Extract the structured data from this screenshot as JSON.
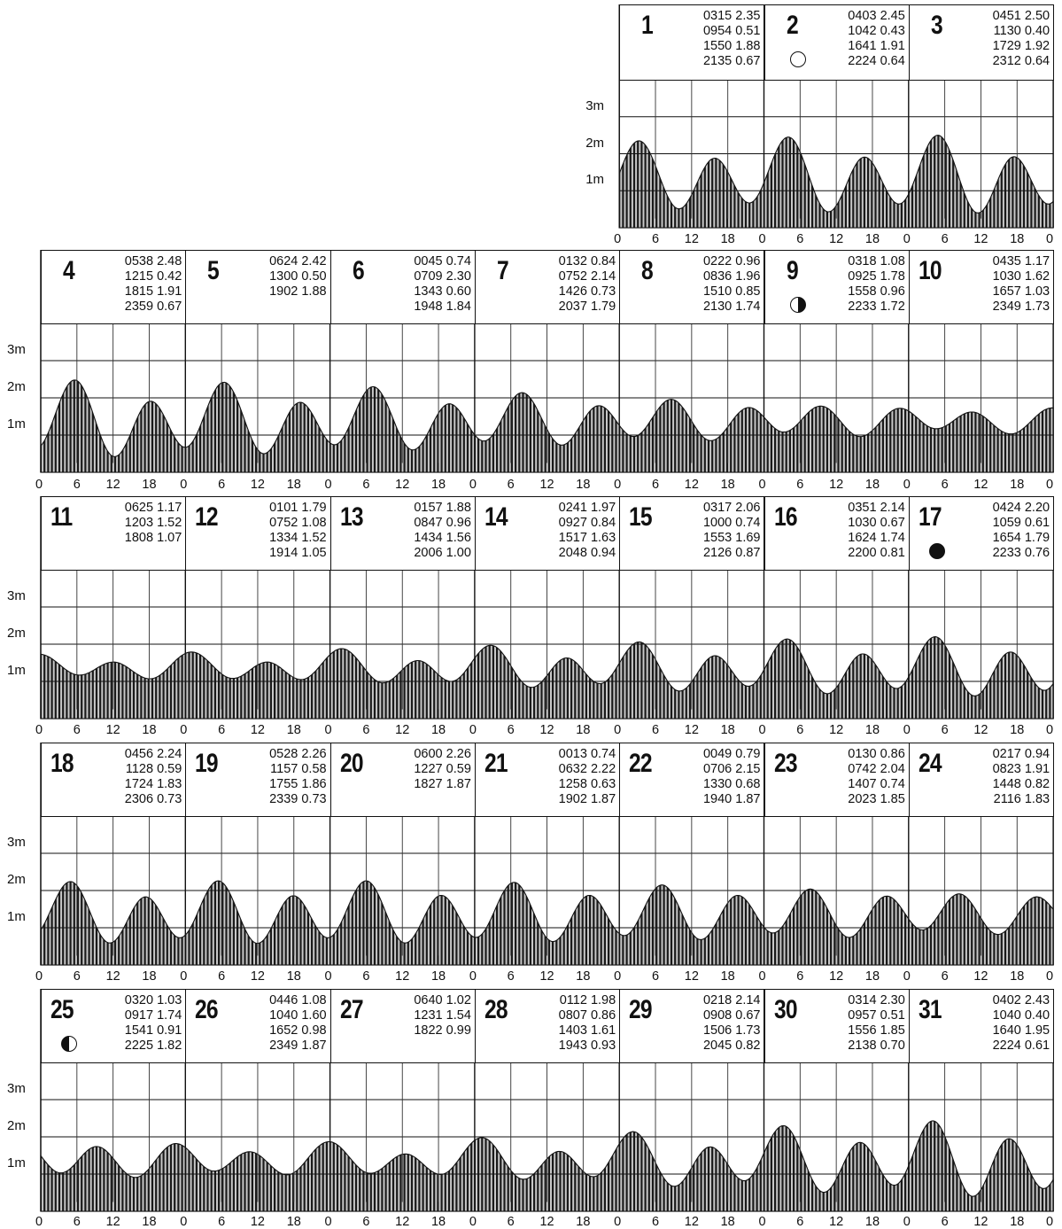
{
  "chart_data": {
    "type": "area",
    "title": "",
    "xlabel": "",
    "ylabel": "",
    "ylim": [
      0,
      4
    ],
    "y_ticks": [
      "1m",
      "2m",
      "3m"
    ],
    "x_ticks": [
      "0",
      "6",
      "12",
      "18",
      "0"
    ],
    "days": [
      {
        "day": "1",
        "moon": "",
        "tides": [
          [
            "0315",
            "2.35"
          ],
          [
            "0954",
            "0.51"
          ],
          [
            "1550",
            "1.88"
          ],
          [
            "2135",
            "0.67"
          ]
        ]
      },
      {
        "day": "2",
        "moon": "full-moon",
        "tides": [
          [
            "0403",
            "2.45"
          ],
          [
            "1042",
            "0.43"
          ],
          [
            "1641",
            "1.91"
          ],
          [
            "2224",
            "0.64"
          ]
        ]
      },
      {
        "day": "3",
        "moon": "",
        "tides": [
          [
            "0451",
            "2.50"
          ],
          [
            "1130",
            "0.40"
          ],
          [
            "1729",
            "1.92"
          ],
          [
            "2312",
            "0.64"
          ]
        ]
      },
      {
        "day": "4",
        "moon": "",
        "tides": [
          [
            "0538",
            "2.48"
          ],
          [
            "1215",
            "0.42"
          ],
          [
            "1815",
            "1.91"
          ],
          [
            "2359",
            "0.67"
          ]
        ]
      },
      {
        "day": "5",
        "moon": "",
        "tides": [
          [
            "0624",
            "2.42"
          ],
          [
            "1300",
            "0.50"
          ],
          [
            "1902",
            "1.88"
          ]
        ]
      },
      {
        "day": "6",
        "moon": "",
        "tides": [
          [
            "0045",
            "0.74"
          ],
          [
            "0709",
            "2.30"
          ],
          [
            "1343",
            "0.60"
          ],
          [
            "1948",
            "1.84"
          ]
        ]
      },
      {
        "day": "7",
        "moon": "",
        "tides": [
          [
            "0132",
            "0.84"
          ],
          [
            "0752",
            "2.14"
          ],
          [
            "1426",
            "0.73"
          ],
          [
            "2037",
            "1.79"
          ]
        ]
      },
      {
        "day": "8",
        "moon": "",
        "tides": [
          [
            "0222",
            "0.96"
          ],
          [
            "0836",
            "1.96"
          ],
          [
            "1510",
            "0.85"
          ],
          [
            "2130",
            "1.74"
          ]
        ]
      },
      {
        "day": "9",
        "moon": "last-quarter",
        "tides": [
          [
            "0318",
            "1.08"
          ],
          [
            "0925",
            "1.78"
          ],
          [
            "1558",
            "0.96"
          ],
          [
            "2233",
            "1.72"
          ]
        ]
      },
      {
        "day": "10",
        "moon": "",
        "tides": [
          [
            "0435",
            "1.17"
          ],
          [
            "1030",
            "1.62"
          ],
          [
            "1657",
            "1.03"
          ],
          [
            "2349",
            "1.73"
          ]
        ]
      },
      {
        "day": "11",
        "moon": "",
        "tides": [
          [
            "0625",
            "1.17"
          ],
          [
            "1203",
            "1.52"
          ],
          [
            "1808",
            "1.07"
          ]
        ]
      },
      {
        "day": "12",
        "moon": "",
        "tides": [
          [
            "0101",
            "1.79"
          ],
          [
            "0752",
            "1.08"
          ],
          [
            "1334",
            "1.52"
          ],
          [
            "1914",
            "1.05"
          ]
        ]
      },
      {
        "day": "13",
        "moon": "",
        "tides": [
          [
            "0157",
            "1.88"
          ],
          [
            "0847",
            "0.96"
          ],
          [
            "1434",
            "1.56"
          ],
          [
            "2006",
            "1.00"
          ]
        ]
      },
      {
        "day": "14",
        "moon": "",
        "tides": [
          [
            "0241",
            "1.97"
          ],
          [
            "0927",
            "0.84"
          ],
          [
            "1517",
            "1.63"
          ],
          [
            "2048",
            "0.94"
          ]
        ]
      },
      {
        "day": "15",
        "moon": "",
        "tides": [
          [
            "0317",
            "2.06"
          ],
          [
            "1000",
            "0.74"
          ],
          [
            "1553",
            "1.69"
          ],
          [
            "2126",
            "0.87"
          ]
        ]
      },
      {
        "day": "16",
        "moon": "",
        "tides": [
          [
            "0351",
            "2.14"
          ],
          [
            "1030",
            "0.67"
          ],
          [
            "1624",
            "1.74"
          ],
          [
            "2200",
            "0.81"
          ]
        ]
      },
      {
        "day": "17",
        "moon": "new-moon",
        "tides": [
          [
            "0424",
            "2.20"
          ],
          [
            "1059",
            "0.61"
          ],
          [
            "1654",
            "1.79"
          ],
          [
            "2233",
            "0.76"
          ]
        ]
      },
      {
        "day": "18",
        "moon": "",
        "tides": [
          [
            "0456",
            "2.24"
          ],
          [
            "1128",
            "0.59"
          ],
          [
            "1724",
            "1.83"
          ],
          [
            "2306",
            "0.73"
          ]
        ]
      },
      {
        "day": "19",
        "moon": "",
        "tides": [
          [
            "0528",
            "2.26"
          ],
          [
            "1157",
            "0.58"
          ],
          [
            "1755",
            "1.86"
          ],
          [
            "2339",
            "0.73"
          ]
        ]
      },
      {
        "day": "20",
        "moon": "",
        "tides": [
          [
            "0600",
            "2.26"
          ],
          [
            "1227",
            "0.59"
          ],
          [
            "1827",
            "1.87"
          ]
        ]
      },
      {
        "day": "21",
        "moon": "",
        "tides": [
          [
            "0013",
            "0.74"
          ],
          [
            "0632",
            "2.22"
          ],
          [
            "1258",
            "0.63"
          ],
          [
            "1902",
            "1.87"
          ]
        ]
      },
      {
        "day": "22",
        "moon": "",
        "tides": [
          [
            "0049",
            "0.79"
          ],
          [
            "0706",
            "2.15"
          ],
          [
            "1330",
            "0.68"
          ],
          [
            "1940",
            "1.87"
          ]
        ]
      },
      {
        "day": "23",
        "moon": "",
        "tides": [
          [
            "0130",
            "0.86"
          ],
          [
            "0742",
            "2.04"
          ],
          [
            "1407",
            "0.74"
          ],
          [
            "2023",
            "1.85"
          ]
        ]
      },
      {
        "day": "24",
        "moon": "",
        "tides": [
          [
            "0217",
            "0.94"
          ],
          [
            "0823",
            "1.91"
          ],
          [
            "1448",
            "0.82"
          ],
          [
            "2116",
            "1.83"
          ]
        ]
      },
      {
        "day": "25",
        "moon": "first-quarter",
        "tides": [
          [
            "0320",
            "1.03"
          ],
          [
            "0917",
            "1.74"
          ],
          [
            "1541",
            "0.91"
          ],
          [
            "2225",
            "1.82"
          ]
        ]
      },
      {
        "day": "26",
        "moon": "",
        "tides": [
          [
            "0446",
            "1.08"
          ],
          [
            "1040",
            "1.60"
          ],
          [
            "1652",
            "0.98"
          ],
          [
            "2349",
            "1.87"
          ]
        ]
      },
      {
        "day": "27",
        "moon": "",
        "tides": [
          [
            "0640",
            "1.02"
          ],
          [
            "1231",
            "1.54"
          ],
          [
            "1822",
            "0.99"
          ]
        ]
      },
      {
        "day": "28",
        "moon": "",
        "tides": [
          [
            "0112",
            "1.98"
          ],
          [
            "0807",
            "0.86"
          ],
          [
            "1403",
            "1.61"
          ],
          [
            "1943",
            "0.93"
          ]
        ]
      },
      {
        "day": "29",
        "moon": "",
        "tides": [
          [
            "0218",
            "2.14"
          ],
          [
            "0908",
            "0.67"
          ],
          [
            "1506",
            "1.73"
          ],
          [
            "2045",
            "0.82"
          ]
        ]
      },
      {
        "day": "30",
        "moon": "",
        "tides": [
          [
            "0314",
            "2.30"
          ],
          [
            "0957",
            "0.51"
          ],
          [
            "1556",
            "1.85"
          ],
          [
            "2138",
            "0.70"
          ]
        ]
      },
      {
        "day": "31",
        "moon": "",
        "tides": [
          [
            "0402",
            "2.43"
          ],
          [
            "1040",
            "0.40"
          ],
          [
            "1640",
            "1.95"
          ],
          [
            "2224",
            "0.61"
          ]
        ]
      }
    ]
  }
}
